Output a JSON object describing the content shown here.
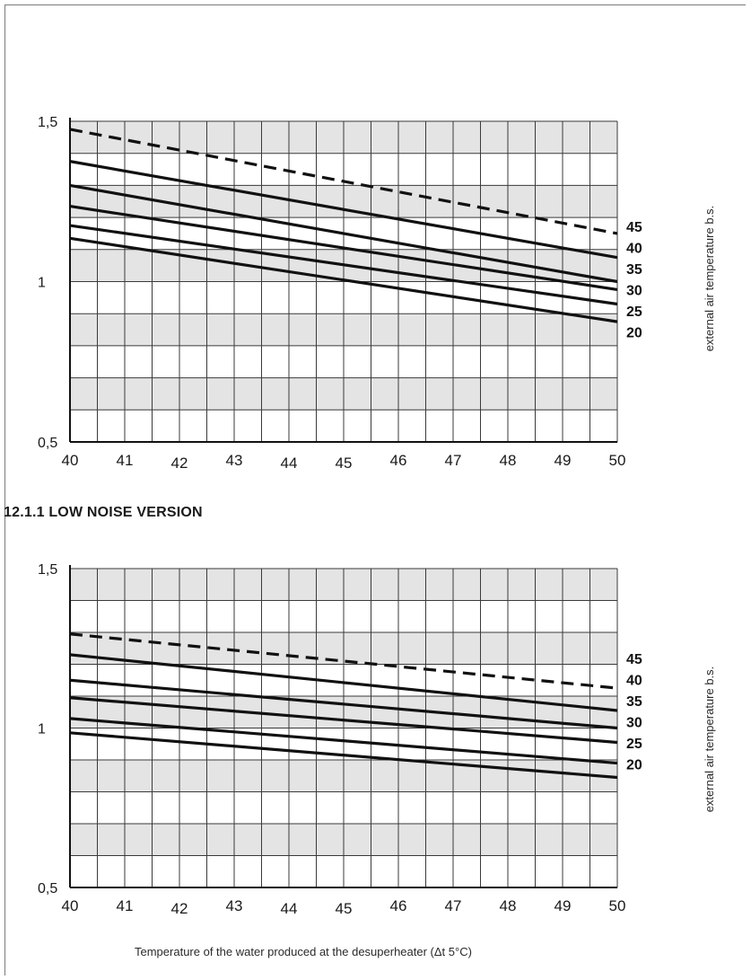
{
  "section_heading": "12.1.1 LOW NOISE VERSION",
  "x_axis_title": "Temperature of the water produced at the desuperheater (Δt 5°C)",
  "chart_data": [
    {
      "type": "line",
      "title": "",
      "xlabel": "",
      "ylabel": "",
      "side_label": "external air temperature  b.s.",
      "xlim": [
        40,
        50
      ],
      "ylim": [
        0.5,
        1.5
      ],
      "x_ticks": [
        "40",
        "41",
        "42",
        "43",
        "44",
        "45",
        "46",
        "47",
        "48",
        "49",
        "50"
      ],
      "y_ticks": [
        {
          "value": 1.5,
          "label": "1,5"
        },
        {
          "value": 1.0,
          "label": "1"
        },
        {
          "value": 0.5,
          "label": "0,5"
        }
      ],
      "grid": true,
      "series": [
        {
          "name": "45",
          "x": [
            40,
            50
          ],
          "y": [
            1.475,
            1.15
          ],
          "dashed": true
        },
        {
          "name": "40",
          "x": [
            40,
            50
          ],
          "y": [
            1.375,
            1.075
          ],
          "dashed": false
        },
        {
          "name": "35",
          "x": [
            40,
            50
          ],
          "y": [
            1.3,
            1.0
          ],
          "dashed": false
        },
        {
          "name": "30",
          "x": [
            40,
            50
          ],
          "y": [
            1.235,
            0.975
          ],
          "dashed": false
        },
        {
          "name": "25",
          "x": [
            40,
            50
          ],
          "y": [
            1.175,
            0.93
          ],
          "dashed": false
        },
        {
          "name": "20",
          "x": [
            40,
            50
          ],
          "y": [
            1.135,
            0.875
          ],
          "dashed": false
        }
      ]
    },
    {
      "type": "line",
      "title": "",
      "xlabel": "",
      "ylabel": "",
      "side_label": "external air temperature b.s.",
      "xlim": [
        40,
        50
      ],
      "ylim": [
        0.5,
        1.5
      ],
      "x_ticks": [
        "40",
        "41",
        "42",
        "43",
        "44",
        "45",
        "46",
        "47",
        "48",
        "49",
        "50"
      ],
      "y_ticks": [
        {
          "value": 1.5,
          "label": "1,5"
        },
        {
          "value": 1.0,
          "label": "1"
        },
        {
          "value": 0.5,
          "label": "0,5"
        }
      ],
      "grid": true,
      "series": [
        {
          "name": "45",
          "x": [
            40,
            50
          ],
          "y": [
            1.295,
            1.125
          ],
          "dashed": true
        },
        {
          "name": "40",
          "x": [
            40,
            50
          ],
          "y": [
            1.23,
            1.055
          ],
          "dashed": false
        },
        {
          "name": "35",
          "x": [
            40,
            50
          ],
          "y": [
            1.15,
            1.0
          ],
          "dashed": false
        },
        {
          "name": "30",
          "x": [
            40,
            50
          ],
          "y": [
            1.095,
            0.955
          ],
          "dashed": false
        },
        {
          "name": "25",
          "x": [
            40,
            50
          ],
          "y": [
            1.03,
            0.89
          ],
          "dashed": false
        },
        {
          "name": "20",
          "x": [
            40,
            50
          ],
          "y": [
            0.985,
            0.845
          ],
          "dashed": false
        }
      ]
    }
  ]
}
